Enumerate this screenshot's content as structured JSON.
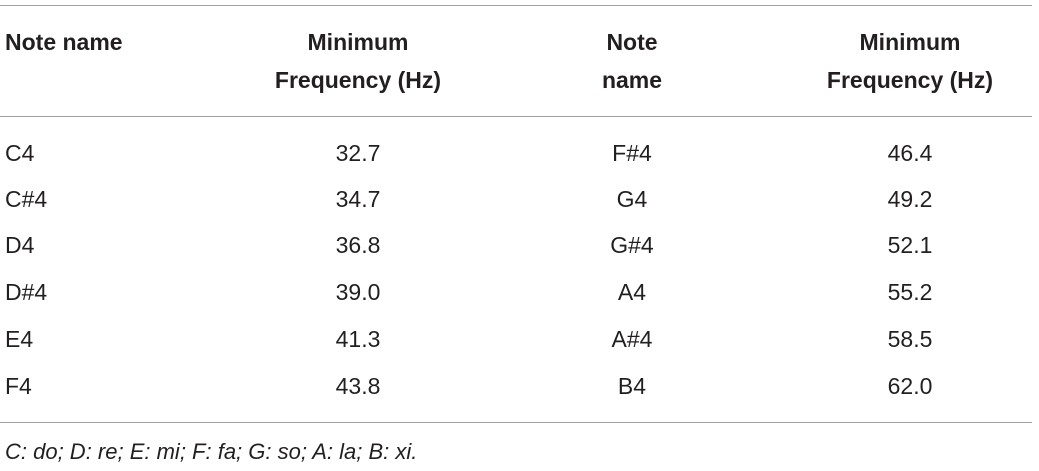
{
  "table": {
    "header": [
      "Note name",
      "Minimum Frequency (Hz)",
      "Note name",
      "Minimum Frequency (Hz)"
    ],
    "rows": [
      [
        "C4",
        "32.7",
        "F#4",
        "46.4"
      ],
      [
        "C#4",
        "34.7",
        "G4",
        "49.2"
      ],
      [
        "D4",
        "36.8",
        "G#4",
        "52.1"
      ],
      [
        "D#4",
        "39.0",
        "A4",
        "55.2"
      ],
      [
        "E4",
        "41.3",
        "A#4",
        "58.5"
      ],
      [
        "F4",
        "43.8",
        "B4",
        "62.0"
      ]
    ],
    "footnote": "C: do; D: re; E: mi; F: fa; G: so; A: la; B: xi."
  }
}
